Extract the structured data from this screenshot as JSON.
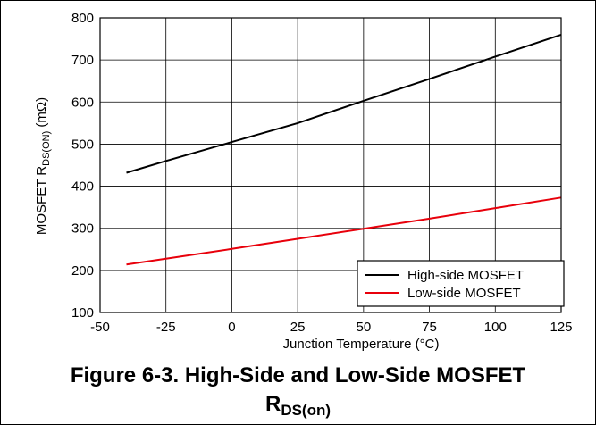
{
  "chart_data": {
    "type": "line",
    "xlabel": "Junction Temperature (°C)",
    "ylabel": {
      "main": "MOSFET R",
      "sub": "DS(ON)",
      "unit": " (mΩ)"
    },
    "xlim": [
      -50,
      125
    ],
    "ylim": [
      100,
      800
    ],
    "x_ticks": [
      -50,
      -25,
      0,
      25,
      50,
      75,
      100,
      125
    ],
    "y_ticks": [
      100,
      200,
      300,
      400,
      500,
      600,
      700,
      800
    ],
    "grid": true,
    "legend_position": "bottom-right",
    "series": [
      {
        "name": "High-side MOSFET",
        "color": "#000000",
        "x": [
          -40,
          -25,
          0,
          25,
          50,
          75,
          100,
          125
        ],
        "y": [
          432,
          460,
          505,
          550,
          603,
          655,
          708,
          760
        ]
      },
      {
        "name": "Low-side MOSFET",
        "color": "#e8000b",
        "x": [
          -40,
          -25,
          0,
          25,
          50,
          75,
          100,
          125
        ],
        "y": [
          214,
          228,
          251,
          275,
          299,
          323,
          348,
          373
        ]
      }
    ]
  },
  "caption": {
    "line1": "Figure 6-3. High-Side and Low-Side MOSFET",
    "line2_main": "R",
    "line2_sub": "DS(on)"
  }
}
